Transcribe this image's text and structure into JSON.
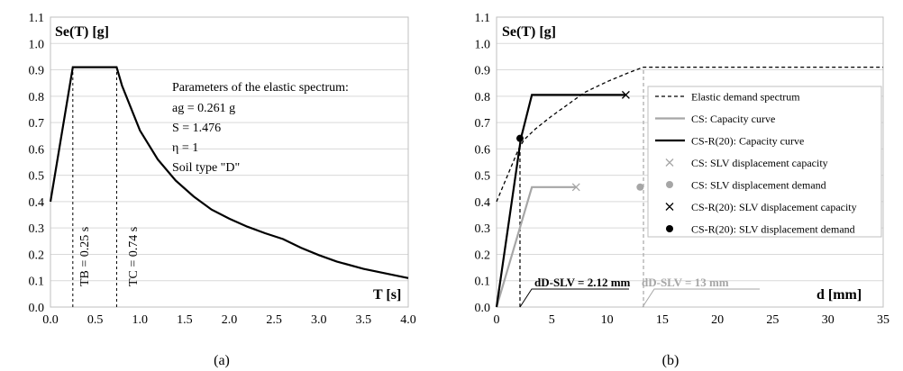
{
  "chart_data": [
    {
      "panel_label": "(a)",
      "type": "line",
      "ylabel": "Se(T) [g]",
      "xlabel": "T [s]",
      "xlim": [
        0,
        4
      ],
      "ylim": [
        0,
        1.1
      ],
      "x_ticks": [
        "0.0",
        "0.5",
        "1.0",
        "1.5",
        "2.0",
        "2.5",
        "3.0",
        "3.5",
        "4.0"
      ],
      "y_ticks": [
        "0.0",
        "0.1",
        "0.2",
        "0.3",
        "0.4",
        "0.5",
        "0.6",
        "0.7",
        "0.8",
        "0.9",
        "1.0",
        "1.1"
      ],
      "series": [
        {
          "name": "Elastic spectrum",
          "color": "#000000",
          "points": [
            [
              0,
              0.4
            ],
            [
              0.25,
              0.91
            ],
            [
              0.74,
              0.91
            ],
            [
              0.8,
              0.84
            ],
            [
              1.0,
              0.67
            ],
            [
              1.2,
              0.56
            ],
            [
              1.4,
              0.48
            ],
            [
              1.6,
              0.42
            ],
            [
              1.8,
              0.37
            ],
            [
              2.0,
              0.335
            ],
            [
              2.2,
              0.305
            ],
            [
              2.4,
              0.28
            ],
            [
              2.6,
              0.258
            ],
            [
              2.8,
              0.225
            ],
            [
              3.0,
              0.197
            ],
            [
              3.2,
              0.173
            ],
            [
              3.5,
              0.145
            ],
            [
              4.0,
              0.11
            ]
          ]
        }
      ],
      "vlines": [
        {
          "x": 0.25,
          "y": 0.91,
          "label": "TB = 0.25 s"
        },
        {
          "x": 0.74,
          "y": 0.91,
          "label": "TC = 0.74 s"
        }
      ],
      "annotation": {
        "title": "Parameters of the elastic spectrum:",
        "lines": [
          "ag = 0.261 g",
          "S = 1.476",
          "η = 1",
          "Soil type \"D\""
        ]
      }
    },
    {
      "panel_label": "(b)",
      "type": "line",
      "ylabel": "Se(T) [g]",
      "xlabel": "d [mm]",
      "xlim": [
        0,
        35
      ],
      "ylim": [
        0,
        1.1
      ],
      "x_ticks": [
        "0",
        "5",
        "10",
        "15",
        "20",
        "25",
        "30",
        "35"
      ],
      "y_ticks": [
        "0.0",
        "0.1",
        "0.2",
        "0.3",
        "0.4",
        "0.5",
        "0.6",
        "0.7",
        "0.8",
        "0.9",
        "1.0",
        "1.1"
      ],
      "series": [
        {
          "name": "Elastic demand spectrum",
          "color": "#000000",
          "style": "dashed",
          "points": [
            [
              0,
              0.4
            ],
            [
              1,
              0.5
            ],
            [
              2,
              0.6
            ],
            [
              2.5,
              0.635
            ],
            [
              3.5,
              0.675
            ],
            [
              5,
              0.725
            ],
            [
              6.5,
              0.77
            ],
            [
              8,
              0.815
            ],
            [
              10,
              0.855
            ],
            [
              12,
              0.89
            ],
            [
              13.3,
              0.91
            ],
            [
              35,
              0.91
            ]
          ]
        },
        {
          "name": "CS: Capacity curve",
          "color": "#a6a6a6",
          "style": "solid",
          "points": [
            [
              0,
              0
            ],
            [
              3.2,
              0.455
            ],
            [
              7.2,
              0.455
            ]
          ]
        },
        {
          "name": "CS-R(20): Capacity curve",
          "color": "#000000",
          "style": "solid",
          "points": [
            [
              0,
              0
            ],
            [
              2.2,
              0.64
            ],
            [
              3.2,
              0.805
            ],
            [
              11.7,
              0.805
            ]
          ]
        }
      ],
      "markers": [
        {
          "name": "CS: SLV displacement capacity",
          "x": 7.2,
          "y": 0.455,
          "symbol": "x",
          "color": "#a6a6a6"
        },
        {
          "name": "CS: SLV displacement demand",
          "x": 13.0,
          "y": 0.455,
          "symbol": "dot",
          "color": "#a6a6a6"
        },
        {
          "name": "CS-R(20): SLV displacement capacity",
          "x": 11.7,
          "y": 0.805,
          "symbol": "x",
          "color": "#000000"
        },
        {
          "name": "CS-R(20): SLV displacement demand",
          "x": 2.12,
          "y": 0.64,
          "symbol": "dot",
          "color": "#000000"
        }
      ],
      "vlines": [
        {
          "x": 2.12,
          "y": 0.64,
          "label": "dD-SLV = 2.12 mm",
          "color": "#000000"
        },
        {
          "x": 13.3,
          "y": 0.91,
          "label": "dD-SLV = 13 mm",
          "color": "#a6a6a6"
        }
      ],
      "legend_position": "right",
      "legend_entries": [
        {
          "label": "Elastic demand spectrum",
          "kind": "dashed",
          "color": "#000000"
        },
        {
          "label": "CS: Capacity curve",
          "kind": "line",
          "color": "#a6a6a6"
        },
        {
          "label": "CS-R(20): Capacity curve",
          "kind": "line",
          "color": "#000000"
        },
        {
          "label": "CS: SLV displacement capacity",
          "kind": "x",
          "color": "#a6a6a6"
        },
        {
          "label": "CS: SLV displacement demand",
          "kind": "dot",
          "color": "#a6a6a6"
        },
        {
          "label": "CS-R(20): SLV displacement capacity",
          "kind": "x",
          "color": "#000000"
        },
        {
          "label": "CS-R(20): SLV displacement demand",
          "kind": "dot",
          "color": "#000000"
        }
      ]
    }
  ]
}
